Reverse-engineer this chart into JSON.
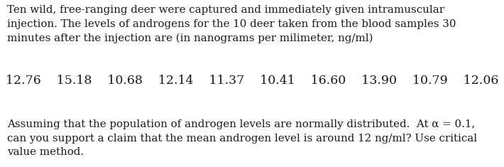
{
  "background_color": "#ffffff",
  "text_color": "#1a1a1a",
  "paragraph1": "Ten wild, free-ranging deer were captured and immediately given intramuscular\ninjection. The levels of androgens for the 10 deer taken from the blood samples 30\nminutes after the injection are (in nanograms per milimeter, ng/ml)",
  "data_values": "12.76    15.18    10.68    12.14    11.37    10.41    16.60    13.90    10.79    12.06",
  "paragraph2": "Assuming that the population of androgen levels are normally distributed.  At α = 0.1,\ncan you support a claim that the mean androgen level is around 12 ng/ml? Use critical\nvalue method.",
  "font_size_para": 10.8,
  "font_size_data": 12.5,
  "fig_width": 7.1,
  "fig_height": 2.35,
  "dpi": 100
}
